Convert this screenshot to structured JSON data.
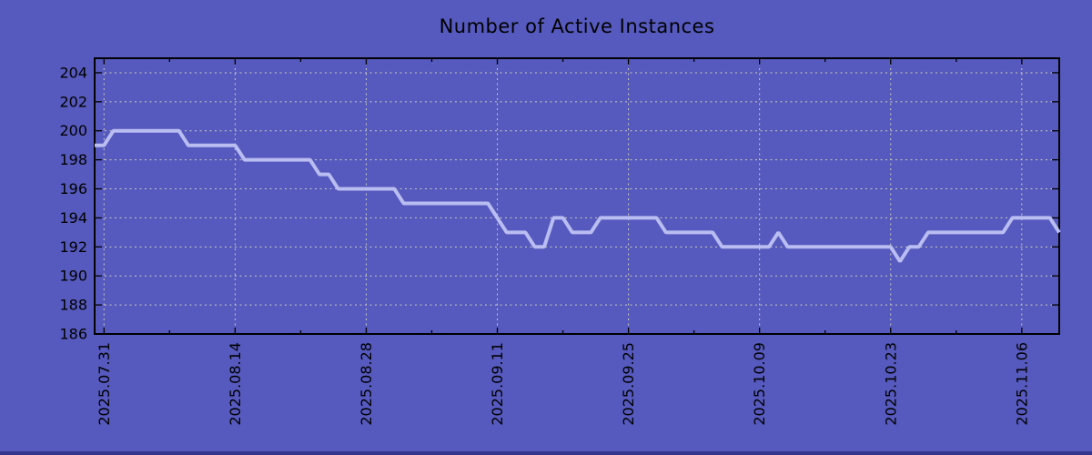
{
  "title": "Number of Active Instances",
  "colors": {
    "background": "#5659BD",
    "line": "#B9BDF1",
    "grid": "#CCCDB9",
    "axis": "#000000",
    "text": "#000000",
    "bottom_strip": "#34348C"
  },
  "chart_data": {
    "type": "line",
    "title": "Number of Active Instances",
    "xlabel": "",
    "ylabel": "",
    "ylim": [
      186,
      205
    ],
    "y_ticks": [
      186,
      188,
      190,
      192,
      194,
      196,
      198,
      200,
      202,
      204
    ],
    "x_major_ticks": [
      "2025.07.31",
      "2025.08.14",
      "2025.08.28",
      "2025.09.11",
      "2025.09.25",
      "2025.10.09",
      "2025.10.23",
      "2025.11.06"
    ],
    "x_minor_ticks": [
      "2025.08.07",
      "2025.08.21",
      "2025.09.04",
      "2025.09.18",
      "2025.10.02",
      "2025.10.16",
      "2025.10.30"
    ],
    "grid": true,
    "legend": "none",
    "x": [
      "2025.07.30",
      "2025.07.31",
      "2025.08.01",
      "2025.08.02",
      "2025.08.03",
      "2025.08.04",
      "2025.08.05",
      "2025.08.06",
      "2025.08.07",
      "2025.08.08",
      "2025.08.09",
      "2025.08.10",
      "2025.08.11",
      "2025.08.12",
      "2025.08.13",
      "2025.08.14",
      "2025.08.15",
      "2025.08.16",
      "2025.08.17",
      "2025.08.18",
      "2025.08.19",
      "2025.08.20",
      "2025.08.21",
      "2025.08.22",
      "2025.08.23",
      "2025.08.24",
      "2025.08.25",
      "2025.08.26",
      "2025.08.27",
      "2025.08.28",
      "2025.08.29",
      "2025.08.30",
      "2025.08.31",
      "2025.09.01",
      "2025.09.02",
      "2025.09.03",
      "2025.09.04",
      "2025.09.05",
      "2025.09.06",
      "2025.09.07",
      "2025.09.08",
      "2025.09.09",
      "2025.09.10",
      "2025.09.11",
      "2025.09.12",
      "2025.09.13",
      "2025.09.14",
      "2025.09.15",
      "2025.09.16",
      "2025.09.17",
      "2025.09.18",
      "2025.09.19",
      "2025.09.20",
      "2025.09.21",
      "2025.09.22",
      "2025.09.23",
      "2025.09.24",
      "2025.09.25",
      "2025.09.26",
      "2025.09.27",
      "2025.09.28",
      "2025.09.29",
      "2025.09.30",
      "2025.10.01",
      "2025.10.02",
      "2025.10.03",
      "2025.10.04",
      "2025.10.05",
      "2025.10.06",
      "2025.10.07",
      "2025.10.08",
      "2025.10.09",
      "2025.10.10",
      "2025.10.11",
      "2025.10.12",
      "2025.10.13",
      "2025.10.14",
      "2025.10.15",
      "2025.10.16",
      "2025.10.17",
      "2025.10.18",
      "2025.10.19",
      "2025.10.20",
      "2025.10.21",
      "2025.10.22",
      "2025.10.23",
      "2025.10.24",
      "2025.10.25",
      "2025.10.26",
      "2025.10.27",
      "2025.10.28",
      "2025.10.29",
      "2025.10.30",
      "2025.10.31",
      "2025.11.01",
      "2025.11.02",
      "2025.11.03",
      "2025.11.04",
      "2025.11.05",
      "2025.11.06",
      "2025.11.07",
      "2025.11.08",
      "2025.11.09",
      "2025.11.10"
    ],
    "series": [
      {
        "name": "Active Instances",
        "values": [
          199,
          199,
          200,
          200,
          200,
          200,
          200,
          200,
          200,
          200,
          199,
          199,
          199,
          199,
          199,
          199,
          198,
          198,
          198,
          198,
          198,
          198,
          198,
          198,
          197,
          197,
          196,
          196,
          196,
          196,
          196,
          196,
          196,
          195,
          195,
          195,
          195,
          195,
          195,
          195,
          195,
          195,
          195,
          194,
          193,
          193,
          193,
          192,
          192,
          194,
          194,
          193,
          193,
          193,
          194,
          194,
          194,
          194,
          194,
          194,
          194,
          193,
          193,
          193,
          193,
          193,
          193,
          192,
          192,
          192,
          192,
          192,
          192,
          193,
          192,
          192,
          192,
          192,
          192,
          192,
          192,
          192,
          192,
          192,
          192,
          192,
          191,
          192,
          192,
          193,
          193,
          193,
          193,
          193,
          193,
          193,
          193,
          193,
          194,
          194,
          194,
          194,
          194,
          193
        ]
      }
    ]
  }
}
